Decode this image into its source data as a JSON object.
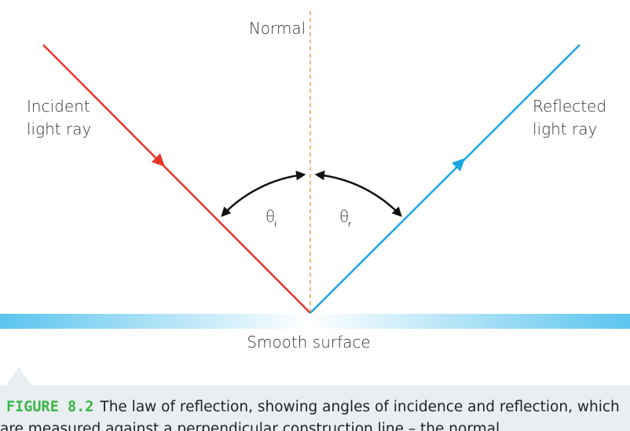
{
  "diagram": {
    "normal_label": "Normal",
    "incident_label": [
      "Incident",
      "light ray"
    ],
    "reflected_label": [
      "Reflected",
      "light ray"
    ],
    "angle_incidence": {
      "symbol": "θ",
      "subscript": "i"
    },
    "angle_reflection": {
      "symbol": "θ",
      "subscript": "r"
    },
    "surface_label": "Smooth surface"
  },
  "caption": {
    "figure_label": "FIGURE 8.2",
    "lines": [
      "The law of reflection, showing angles of incidence and reflection, which",
      "are measured against a perpendicular construction line – the normal"
    ]
  }
}
